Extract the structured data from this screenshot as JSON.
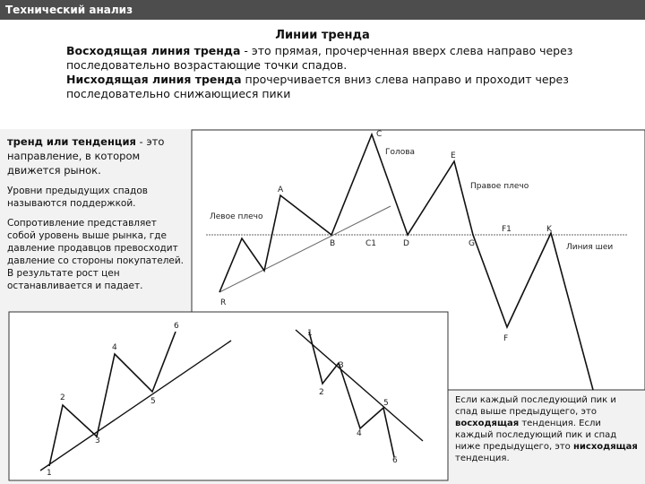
{
  "header": {
    "title": "Технический анализ"
  },
  "intro": {
    "heading": "Линии тренда",
    "paragraphs": [
      {
        "bold": "Восходящая линия тренда",
        "text": " - это прямая, прочерченная вверх слева направо через последовательно возрастающие точки спадов."
      },
      {
        "bold": "Нисходящая линия тренда",
        "text": " прочерчивается вниз слева направо и проходит через последовательно снижающиеся пики"
      }
    ]
  },
  "notes": [
    {
      "bold": "тренд или тенденция",
      "text": " - это направление, в котором движется рынок."
    },
    {
      "text": "Уровни предыдущих спадов называются поддержкой."
    },
    {
      "text": "Сопротивление представляет собой уровень выше рынка, где давление продавцов превосходит давление со стороны покупателей. В результате рост цен останавливается и падает."
    }
  ],
  "head_shoulders": {
    "labels": [
      "C",
      "Голова",
      "E",
      "Правое плечо",
      "A",
      "Левое плечо",
      "B",
      "C1",
      "D",
      "G",
      "F1",
      "K",
      "Линия шеи",
      "R",
      "F"
    ]
  },
  "uptrend": {
    "labels": [
      "1",
      "2",
      "3",
      "4",
      "5",
      "6"
    ]
  },
  "downtrend": {
    "labels": [
      "1",
      "2",
      "3",
      "4",
      "5",
      "6"
    ]
  },
  "summary": {
    "parts": [
      {
        "text": "Если каждый последующий пик и спад выше предыдущего, это "
      },
      {
        "bold": "восходящая"
      },
      {
        "text": " тенденция. Если каждый последующий пик и спад ниже предыдущего, это "
      },
      {
        "bold": "нисходящая"
      },
      {
        "text": " тенденция."
      }
    ]
  }
}
